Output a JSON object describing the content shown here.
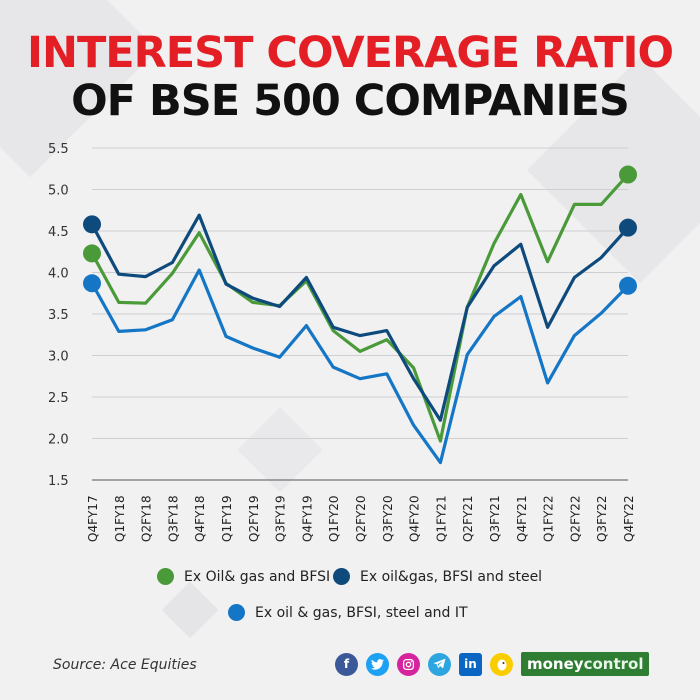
{
  "header": {
    "title_line1": "INTEREST COVERAGE RATIO",
    "title_line2": "OF BSE 500 COMPANIES"
  },
  "colors": {
    "title_red": "#e31e24",
    "green": "#4a9a3a",
    "dark_blue": "#0e4a7c",
    "blue": "#1576c6"
  },
  "chart_data": {
    "type": "line",
    "title": "INTEREST COVERAGE RATIO OF BSE 500 COMPANIES",
    "xlabel": "",
    "ylabel": "",
    "ylim": [
      1.5,
      5.5
    ],
    "yticks": [
      1.5,
      2.0,
      2.5,
      3.0,
      3.5,
      4.0,
      4.5,
      5.0,
      5.5
    ],
    "ytick_labels": [
      "1.5",
      "2.0",
      "2.5",
      "3.0",
      "3.5",
      "4.0",
      "4.5",
      "5.0",
      "5.5"
    ],
    "grid": true,
    "categories": [
      "Q4FY17",
      "Q1FY18",
      "Q2FY18",
      "Q3FY18",
      "Q4FY18",
      "Q1FY19",
      "Q2FY19",
      "Q3FY19",
      "Q4FY19",
      "Q1FY20",
      "Q2FY20",
      "Q3FY20",
      "Q4FY20",
      "Q1FY21",
      "Q2FY21",
      "Q3FY21",
      "Q4FY21",
      "Q1FY22",
      "Q2FY22",
      "Q3FY22",
      "Q4FY22"
    ],
    "series": [
      {
        "name": "Ex Oil& gas and BFSI",
        "color": "#4a9a3a",
        "values": [
          4.23,
          3.64,
          3.63,
          3.99,
          4.48,
          3.87,
          3.64,
          3.6,
          3.9,
          3.3,
          3.05,
          3.19,
          2.85,
          1.97,
          3.58,
          4.35,
          4.94,
          4.13,
          4.82,
          4.82,
          5.18
        ]
      },
      {
        "name": "Ex oil&gas, BFSI and steel",
        "color": "#0e4a7c",
        "values": [
          4.58,
          3.98,
          3.95,
          4.12,
          4.69,
          3.86,
          3.69,
          3.59,
          3.94,
          3.34,
          3.24,
          3.3,
          2.72,
          2.22,
          3.58,
          4.08,
          4.34,
          3.34,
          3.94,
          4.18,
          4.54
        ]
      },
      {
        "name": "Ex oil & gas, BFSI, steel and IT",
        "color": "#1576c6",
        "values": [
          3.87,
          3.29,
          3.31,
          3.43,
          4.03,
          3.23,
          3.09,
          2.98,
          3.36,
          2.86,
          2.72,
          2.78,
          2.16,
          1.71,
          3.01,
          3.47,
          3.71,
          2.67,
          3.24,
          3.51,
          3.84
        ]
      }
    ],
    "legend_position": "bottom"
  },
  "legend": {
    "s1": "Ex Oil& gas and BFSI",
    "s2": "Ex oil&gas, BFSI and steel",
    "s3": "Ex oil & gas, BFSI, steel and IT"
  },
  "footer": {
    "source": "Source: Ace Equities",
    "brand_part1": "money",
    "brand_part2": "control",
    "social_icons": [
      "facebook-icon",
      "twitter-icon",
      "instagram-icon",
      "telegram-icon",
      "linkedin-icon",
      "koo-icon"
    ],
    "facebook_glyph": "f",
    "linkedin_glyph": "in"
  }
}
